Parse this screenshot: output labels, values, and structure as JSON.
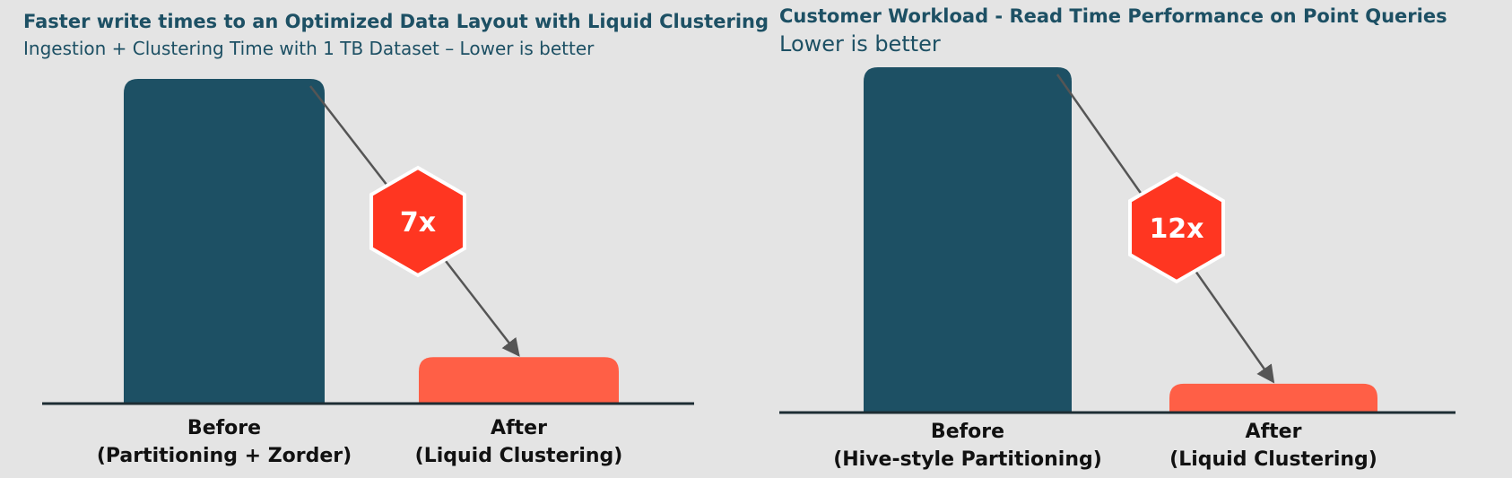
{
  "chart_data": [
    {
      "type": "bar",
      "title": "Faster write times to an Optimized Data Layout with Liquid Clustering",
      "subtitle": "Ingestion + Clustering Time with 1 TB Dataset – Lower is better",
      "categories": [
        "Before\n(Partitioning + Zorder)",
        "After\n(Liquid Clustering)"
      ],
      "values": [
        7,
        1
      ],
      "colors": [
        "#1d5064",
        "#ff5f46"
      ],
      "ylim": [
        0,
        7
      ],
      "annotation": "7x"
    },
    {
      "type": "bar",
      "title": "Customer Workload -  Read Time Performance on Point Queries",
      "subtitle": "Lower is better",
      "categories": [
        "Before\n(Hive-style Partitioning)",
        "After\n(Liquid Clustering)"
      ],
      "values": [
        12,
        1
      ],
      "colors": [
        "#1d5064",
        "#ff5f46"
      ],
      "ylim": [
        0,
        12
      ],
      "annotation": "12x"
    }
  ]
}
